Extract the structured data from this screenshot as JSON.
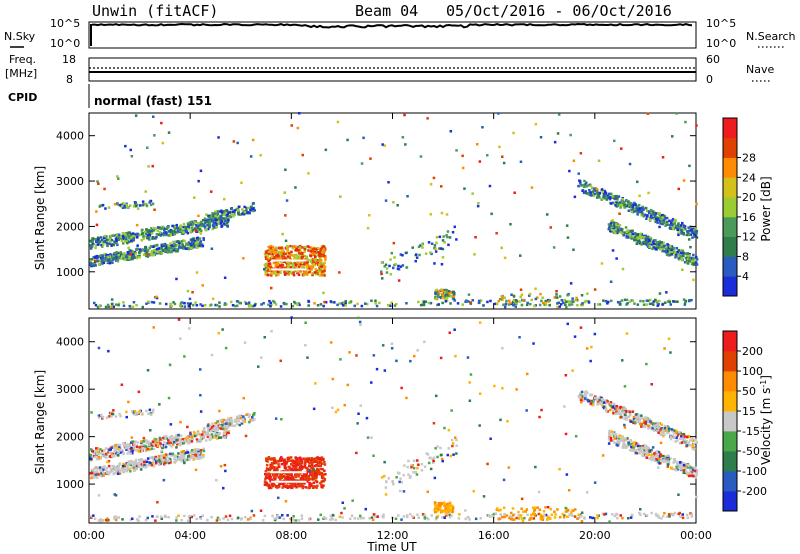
{
  "header": {
    "station": "Unwin (fitACF)",
    "beam": "Beam 04",
    "date_range": "05/Oct/2016 - 06/Oct/2016"
  },
  "noise_panel": {
    "left_label": "N.Sky",
    "right_label": "N.Search",
    "left_ticks": [
      "10^5",
      "10^0"
    ],
    "right_ticks": [
      "10^5",
      "10^0"
    ]
  },
  "freq_panel": {
    "left_label_1": "Freq.",
    "left_label_2": "[MHz]",
    "right_label": "Nave",
    "left_ticks": [
      "18",
      "8"
    ],
    "right_ticks": [
      "60",
      "0"
    ]
  },
  "cpid_panel": {
    "label": "CPID",
    "program": "normal (fast) 151"
  },
  "chart_data": [
    {
      "type": "heatmap",
      "panel": "power",
      "ylabel": "Slant Range [km]",
      "ylim": [
        180,
        4500
      ],
      "yticks": [
        "1000",
        "2000",
        "3000",
        "4000"
      ],
      "xlim_hours": [
        0,
        24
      ],
      "colorbar": {
        "label": "Power [dB]",
        "ticks": [
          "4",
          "8",
          "12",
          "16",
          "20",
          "24",
          "28"
        ],
        "colors": [
          "#1a2dd8",
          "#2a5cc0",
          "#2e7d4a",
          "#4a9a5a",
          "#9acd32",
          "#d4c01a",
          "#ff8c00",
          "#e04000",
          "#ee1c1c"
        ]
      }
    },
    {
      "type": "heatmap",
      "panel": "velocity",
      "ylabel": "Slant Range [km]",
      "ylim": [
        180,
        4500
      ],
      "yticks": [
        "1000",
        "2000",
        "3000",
        "4000"
      ],
      "xlim_hours": [
        0,
        24
      ],
      "xlabel": "Time UT",
      "xticks": [
        "00:00",
        "04:00",
        "08:00",
        "12:00",
        "16:00",
        "20:00",
        "00:00"
      ],
      "colorbar": {
        "label": "Velocity [m s^-1]",
        "ticks": [
          "200",
          "100",
          "50",
          "15",
          "-15",
          "-50",
          "-100",
          "-200"
        ],
        "colors": [
          "#1a2dd8",
          "#2a5cc0",
          "#2e7d4a",
          "#4aa84a",
          "#c8c8c8",
          "#ffb400",
          "#ff8c00",
          "#e04000",
          "#ee1c1c"
        ]
      }
    }
  ]
}
